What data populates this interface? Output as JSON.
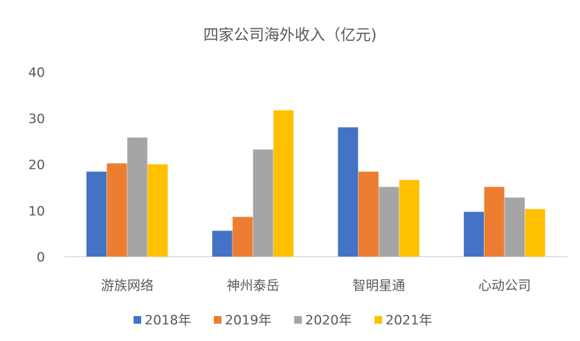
{
  "chart_data": {
    "type": "bar",
    "title": "四家公司海外收入（亿元)",
    "categories": [
      "游族网络",
      "神州泰岳",
      "智明星通",
      "心动公司"
    ],
    "series": [
      {
        "name": "2018年",
        "color": "#4472C4",
        "values": [
          18.4,
          5.6,
          28.0,
          9.7
        ]
      },
      {
        "name": "2019年",
        "color": "#ED7D31",
        "values": [
          20.2,
          8.6,
          18.4,
          15.1
        ]
      },
      {
        "name": "2020年",
        "color": "#A5A5A5",
        "values": [
          25.8,
          23.2,
          15.1,
          12.8
        ]
      },
      {
        "name": "2021年",
        "color": "#FFC000",
        "values": [
          20.0,
          31.7,
          16.6,
          10.3
        ]
      }
    ],
    "yticks": [
      "0",
      "10",
      "20",
      "30",
      "40"
    ],
    "ylim": [
      0,
      40
    ],
    "grid": false,
    "legend": "bottom"
  }
}
